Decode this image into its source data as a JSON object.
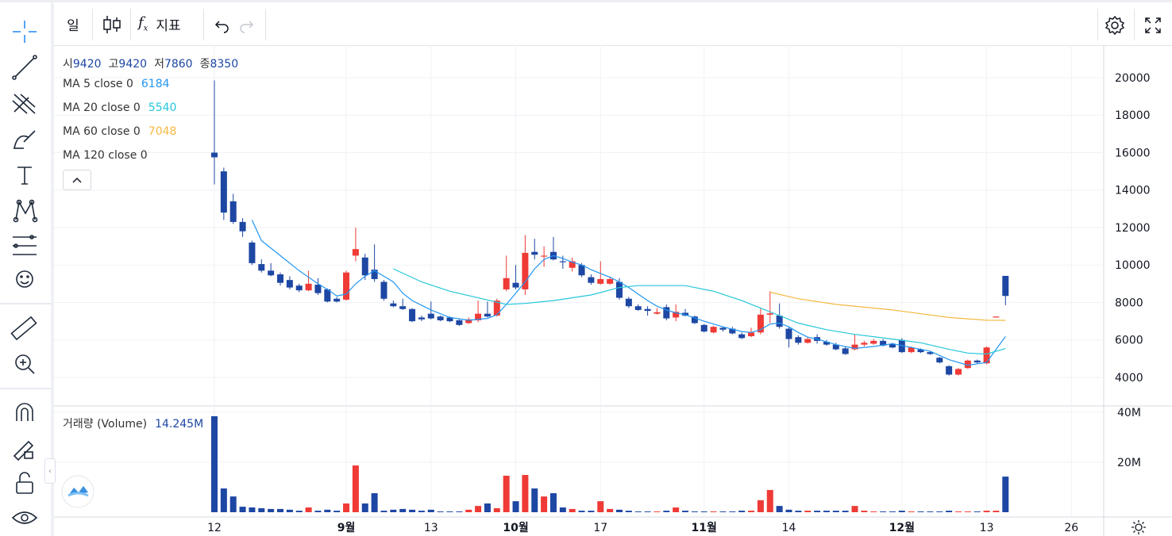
{
  "ui": {
    "period": "일",
    "indicators": "지표"
  },
  "chart_data": {
    "type": "candlestick",
    "ohlc_labels": {
      "open": "시",
      "high": "고",
      "low": "저",
      "close": "종"
    },
    "up_color": "#ef3a36",
    "down_color": "#1d47a3",
    "open": [
      16000,
      15000,
      13400,
      12300,
      11200,
      10050,
      9700,
      9500,
      9200,
      8900,
      8650,
      8950,
      8700,
      8200,
      8150,
      10500,
      10400,
      9750,
      9100,
      7950,
      7800,
      7650,
      7200,
      7400,
      7250,
      7200,
      7050,
      6900,
      7050,
      7400,
      7300,
      8700,
      9050,
      8700,
      10700,
      10450,
      10700,
      10200,
      9850,
      10000,
      9350,
      9000,
      9000,
      9100,
      8200,
      7800,
      7650,
      7400,
      7750,
      7200,
      7450,
      7250,
      6800,
      6400,
      6650,
      6600,
      6300,
      6200,
      6400,
      7350,
      7300,
      6600,
      6150,
      5850,
      6150,
      5900,
      5750,
      5550,
      5500,
      5750,
      5800,
      5950,
      5800,
      6000,
      5350,
      5500,
      5350,
      5050,
      4600,
      4150,
      4500,
      4900,
      4750,
      7200,
      9420
    ],
    "high": [
      19850,
      15200,
      13800,
      12500,
      11300,
      10300,
      10100,
      9600,
      9400,
      9000,
      9700,
      9300,
      8750,
      8300,
      9700,
      12000,
      10600,
      11100,
      9200,
      8100,
      8200,
      7700,
      7300,
      8050,
      7300,
      7250,
      7100,
      7200,
      8100,
      8050,
      8200,
      10500,
      10000,
      11600,
      11400,
      11000,
      11500,
      10500,
      10400,
      10100,
      9500,
      10200,
      9350,
      9300,
      8300,
      7900,
      7800,
      7700,
      7900,
      7900,
      7650,
      7300,
      6850,
      6750,
      6700,
      6700,
      6400,
      6650,
      7700,
      8600,
      7950,
      6700,
      6250,
      6150,
      6300,
      6000,
      5850,
      5650,
      6300,
      5950,
      6050,
      6050,
      5850,
      6100,
      5650,
      5550,
      5400,
      5100,
      4650,
      4500,
      4950,
      4950,
      5650,
      7250,
      9420
    ],
    "low": [
      14300,
      12400,
      12200,
      11500,
      10000,
      9600,
      9400,
      8900,
      8700,
      8550,
      8600,
      8400,
      8000,
      8000,
      8100,
      10200,
      9200,
      9100,
      8100,
      7750,
      7600,
      6950,
      7000,
      7100,
      7000,
      6950,
      6750,
      6850,
      6950,
      7200,
      7250,
      8600,
      8700,
      8400,
      10300,
      9900,
      10250,
      9800,
      9650,
      9350,
      8950,
      8950,
      8950,
      8150,
      7700,
      7550,
      7300,
      7350,
      7050,
      7000,
      7250,
      6850,
      6400,
      6350,
      6450,
      6300,
      6050,
      6150,
      6300,
      6900,
      6600,
      5600,
      5750,
      5800,
      5800,
      5700,
      5450,
      5200,
      5450,
      5650,
      5750,
      5650,
      5550,
      5300,
      5300,
      5300,
      5200,
      4750,
      4100,
      4100,
      4450,
      4750,
      4700,
      7200,
      7860
    ],
    "close": [
      15750,
      12800,
      12300,
      11800,
      10100,
      9700,
      9450,
      9050,
      8800,
      8650,
      9000,
      8500,
      8050,
      8050,
      9600,
      10850,
      9450,
      9250,
      8200,
      7800,
      7650,
      7000,
      7100,
      7150,
      7050,
      7000,
      6800,
      7100,
      7400,
      7250,
      8100,
      9300,
      8800,
      10650,
      10550,
      10500,
      10300,
      10150,
      10200,
      9450,
      9050,
      9250,
      9250,
      8250,
      7800,
      7600,
      7550,
      7480,
      7150,
      7500,
      7300,
      6900,
      6450,
      6700,
      6550,
      6350,
      6100,
      6400,
      7350,
      7420,
      6700,
      6050,
      5850,
      6050,
      5950,
      5750,
      5500,
      5250,
      5750,
      5850,
      5950,
      5700,
      5600,
      5350,
      5600,
      5350,
      5250,
      4800,
      4150,
      4450,
      4900,
      4800,
      5600,
      7250,
      8350
    ],
    "ylim": [
      2476,
      21735
    ],
    "yticks": [
      4000,
      6000,
      8000,
      10000,
      12000,
      14000,
      16000,
      18000,
      20000
    ],
    "xlim": [
      -17.03,
      94.43
    ],
    "xticks": [
      {
        "value": 0,
        "label": "12"
      },
      {
        "value": 14,
        "label": "9월"
      },
      {
        "value": 23,
        "label": "13"
      },
      {
        "value": 32,
        "label": "10월"
      },
      {
        "value": 41,
        "label": "17"
      },
      {
        "value": 52,
        "label": "11월"
      },
      {
        "value": 61,
        "label": "14"
      },
      {
        "value": 73,
        "label": "12월"
      },
      {
        "value": 82,
        "label": "13"
      },
      {
        "value": 91,
        "label": "26"
      }
    ],
    "grid": true,
    "ma": [
      {
        "name": "MA 5 close 0",
        "color": "#2196f3",
        "x": [
          4,
          5,
          7,
          9,
          11,
          12,
          13,
          14,
          15,
          16,
          17,
          18,
          19,
          20,
          21,
          23,
          25,
          27,
          29,
          30,
          31,
          32,
          33,
          34,
          35,
          36,
          37,
          38,
          39,
          40,
          41,
          42,
          43,
          44,
          45,
          46,
          47,
          48,
          49,
          50,
          52,
          54,
          56,
          57,
          58,
          59,
          60,
          61,
          62,
          63,
          64,
          66,
          68,
          70,
          72,
          73,
          74,
          76,
          78,
          80,
          82,
          83,
          84
        ],
        "values": [
          12400,
          11300,
          10500,
          9700,
          9000,
          8700,
          8350,
          8450,
          9000,
          9400,
          9700,
          9400,
          9100,
          8500,
          8100,
          7600,
          7200,
          7050,
          7150,
          7350,
          7900,
          8500,
          9100,
          9800,
          10300,
          10500,
          10350,
          10150,
          10000,
          9750,
          9550,
          9350,
          9100,
          8800,
          8450,
          8100,
          7800,
          7600,
          7450,
          7350,
          7000,
          6700,
          6450,
          6400,
          6550,
          6850,
          6900,
          6700,
          6400,
          6150,
          6050,
          5750,
          5550,
          5650,
          5800,
          5700,
          5600,
          5400,
          4950,
          4650,
          4800,
          5500,
          6184
        ]
      },
      {
        "name": "MA 20 close 0",
        "color": "#26c6da",
        "x": [
          19,
          22,
          25,
          28,
          31,
          33,
          36,
          40,
          43,
          45,
          50,
          53,
          56,
          58,
          60,
          62,
          65,
          68,
          72,
          75,
          78,
          80,
          82,
          84
        ],
        "values": [
          9800,
          9100,
          8600,
          8250,
          7900,
          7950,
          8100,
          8400,
          8800,
          8900,
          8900,
          8600,
          8100,
          7700,
          7300,
          6900,
          6550,
          6300,
          6050,
          5850,
          5500,
          5300,
          5250,
          5540
        ]
      },
      {
        "name": "MA 60 close 0",
        "color": "#f5b942",
        "x": [
          59,
          62,
          66,
          72,
          78,
          82,
          84
        ],
        "values": [
          8550,
          8200,
          7900,
          7600,
          7200,
          7050,
          7048
        ]
      },
      {
        "name": "MA 120 close 0",
        "color": "#9c27b0",
        "x": [],
        "values": []
      }
    ],
    "volume": {
      "title": "거래량 (Volume)",
      "last_label": "14.245M",
      "values": [
        38.4,
        9.5,
        6.3,
        2.2,
        1.9,
        1.6,
        1.3,
        1.3,
        1.0,
        0.6,
        1.9,
        0.6,
        1.0,
        0.6,
        3.5,
        18.7,
        3.5,
        7.6,
        0.6,
        1.0,
        1.3,
        1.0,
        0.6,
        1.0,
        0.3,
        0.3,
        0.3,
        1.0,
        2.5,
        3.5,
        1.6,
        14.6,
        4.4,
        14.9,
        9.5,
        6.3,
        7.6,
        1.9,
        1.3,
        0.6,
        0.6,
        4.4,
        1.3,
        1.0,
        0.6,
        0.3,
        0.3,
        0.3,
        0.6,
        1.9,
        0.6,
        0.3,
        0.3,
        0.3,
        0.3,
        0.3,
        0.6,
        0.6,
        4.8,
        8.9,
        2.5,
        1.0,
        0.6,
        0.6,
        0.6,
        0.6,
        0.6,
        0.6,
        2.5,
        0.6,
        0.3,
        0.3,
        0.3,
        0.6,
        0.3,
        0.3,
        0.3,
        0.3,
        0.6,
        0.3,
        0.3,
        0.3,
        0.6,
        0.6,
        14.245
      ],
      "ylim": [
        0,
        42.5
      ],
      "yticks": [
        {
          "value": 20,
          "label": "20M"
        },
        {
          "value": 40,
          "label": "40M"
        }
      ]
    }
  }
}
